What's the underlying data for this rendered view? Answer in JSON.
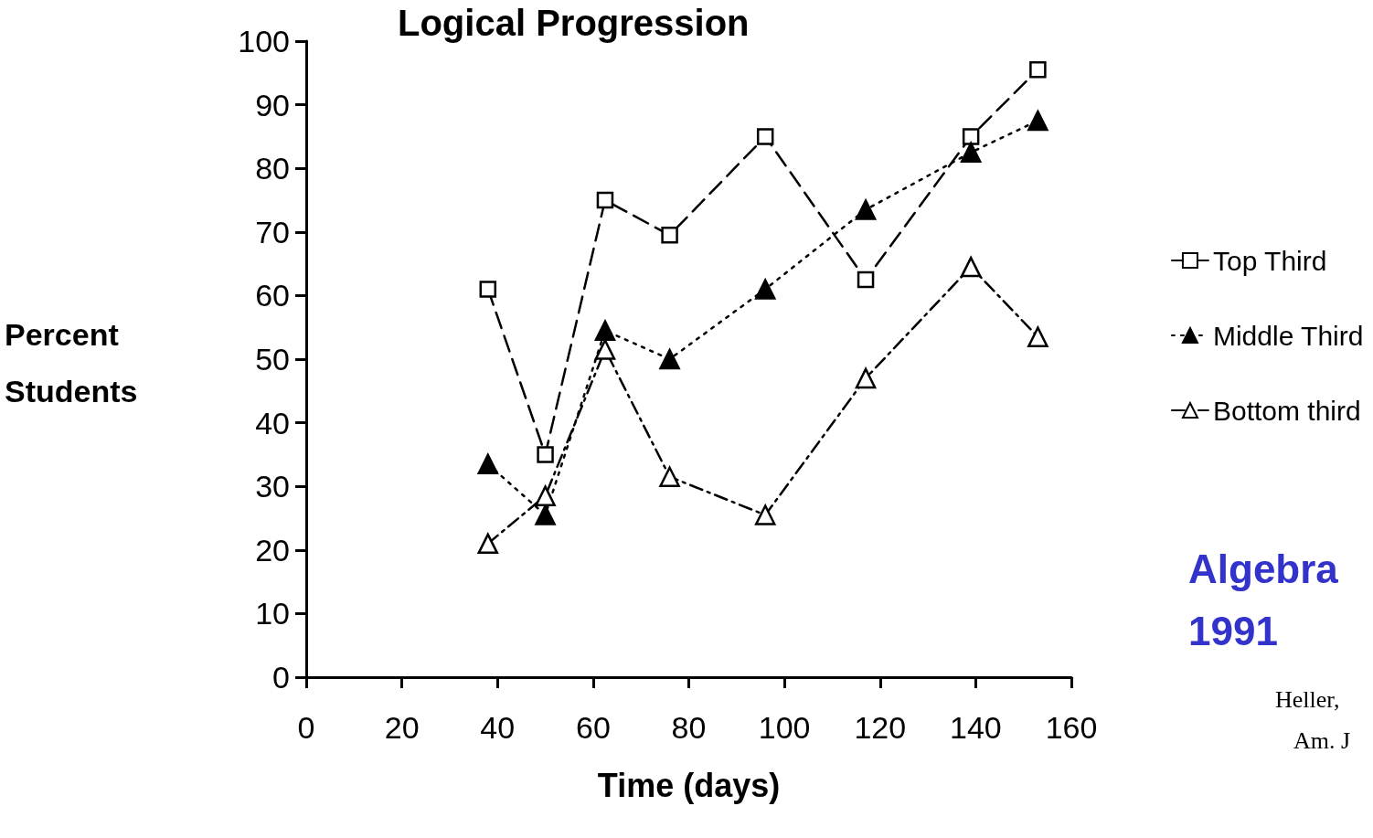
{
  "chart_data": {
    "type": "line",
    "title": "Logical Progression",
    "xlabel": "Time (days)",
    "ylabel": "Percent Students",
    "xlim": [
      0,
      160
    ],
    "xticks": [
      0,
      20,
      40,
      60,
      80,
      100,
      120,
      140,
      160
    ],
    "ylim": [
      0,
      100
    ],
    "yticks": [
      0,
      10,
      20,
      30,
      40,
      50,
      60,
      70,
      80,
      90,
      100
    ],
    "x": [
      38,
      50,
      62.5,
      76,
      96,
      117,
      139,
      153
    ],
    "series": [
      {
        "name": "Top Third",
        "color": "#000000",
        "marker": "square-open",
        "line_style": "dashed",
        "values": [
          61,
          35,
          75,
          69.5,
          85,
          62.5,
          85,
          95.5
        ]
      },
      {
        "name": "Middle Third",
        "color": "#000000",
        "marker": "triangle",
        "line_style": "dotted",
        "values": [
          33.5,
          25.5,
          54.5,
          50,
          61,
          73.5,
          82.5,
          87.5
        ]
      },
      {
        "name": "Bottom third",
        "color": "#000000",
        "marker": "triangle-open",
        "line_style": "dashdot",
        "values": [
          21,
          28.5,
          51.5,
          31.5,
          25.5,
          47,
          64.5,
          53.5
        ]
      }
    ],
    "grid": false,
    "legend": "right",
    "annotations": [
      "Algebra",
      "1991",
      "Heller,",
      "Am. J"
    ]
  }
}
